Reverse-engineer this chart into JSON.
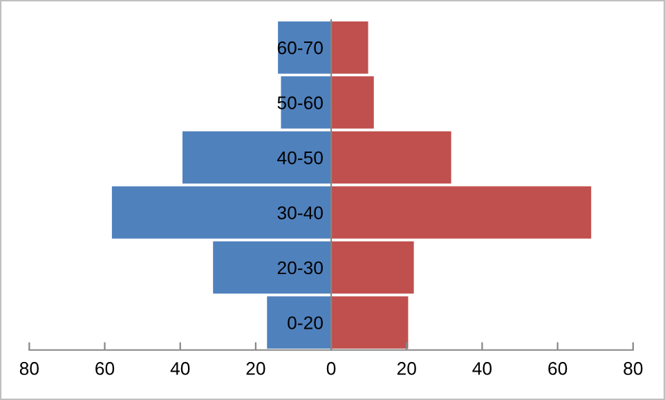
{
  "chart_data": {
    "type": "bar",
    "orientation": "horizontal",
    "categories": [
      "60-70",
      "50-60",
      "40-50",
      "30-40",
      "20-30",
      "0-20"
    ],
    "series": [
      {
        "color": "#4f81bd",
        "values": [
          -14.1,
          -13.3,
          -39.4,
          -58.1,
          -31.3,
          -17.0
        ]
      },
      {
        "color": "#c0504d",
        "values": [
          9.8,
          11.3,
          31.8,
          68.9,
          21.9,
          20.4
        ]
      }
    ],
    "xlim": [
      -80,
      80
    ],
    "xticks": [
      {
        "value": -80,
        "label": "80"
      },
      {
        "value": -60,
        "label": "60"
      },
      {
        "value": -40,
        "label": "40"
      },
      {
        "value": -20,
        "label": "20"
      },
      0,
      20,
      40,
      60,
      80
    ],
    "stacked": true,
    "grid": false,
    "legend": false
  }
}
